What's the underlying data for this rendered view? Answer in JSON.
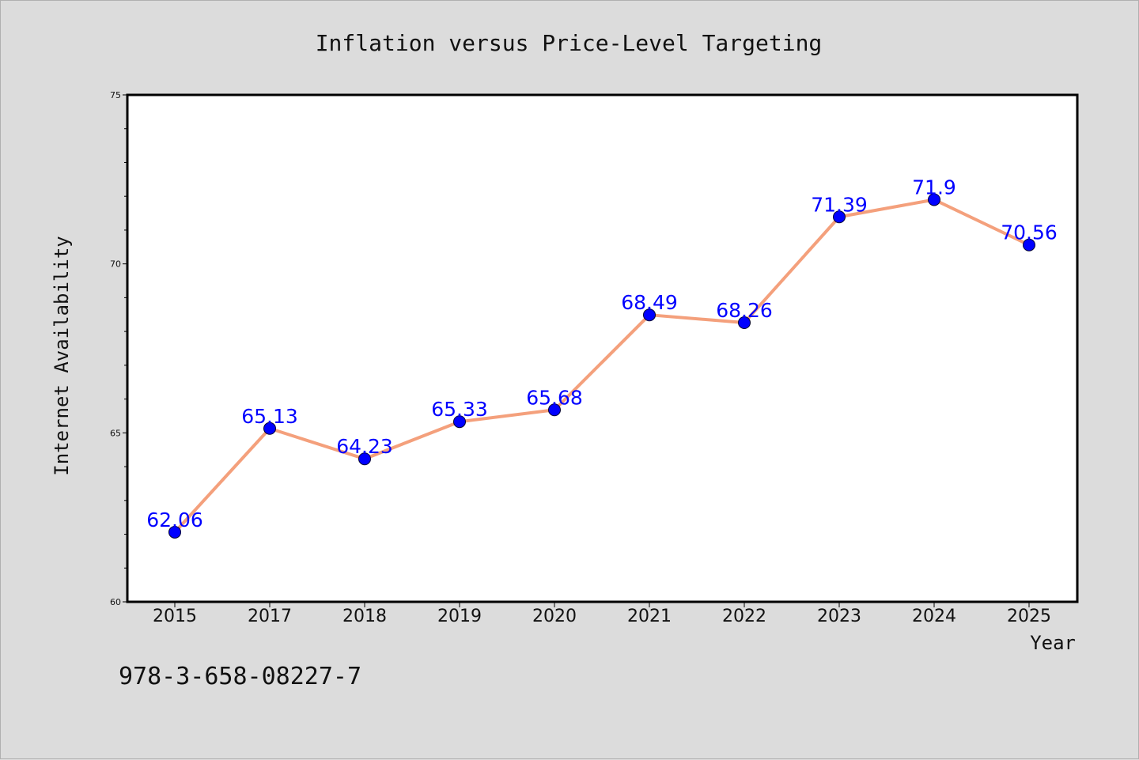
{
  "chart_data": {
    "type": "line",
    "title": "Inflation versus Price-Level Targeting",
    "xlabel": "Year",
    "ylabel": "Internet Availability",
    "categories": [
      "2015",
      "2017",
      "2018",
      "2019",
      "2020",
      "2021",
      "2022",
      "2023",
      "2024",
      "2025"
    ],
    "series": [
      {
        "values": [
          62.06,
          65.13,
          64.23,
          65.33,
          65.68,
          68.49,
          68.26,
          71.39,
          71.9,
          70.56
        ],
        "labels": [
          "62.06",
          "65.13",
          "64.23",
          "65.33",
          "65.68",
          "68.49",
          "68.26",
          "71.39",
          "71.9",
          "70.56"
        ],
        "line_color": "#f4a07c",
        "marker_color": "#0000ff"
      }
    ],
    "ylim": [
      60,
      75
    ],
    "yticks": [
      "60",
      "65",
      "70",
      "75"
    ],
    "grid": false,
    "legend": "none"
  },
  "footer": {
    "isbn": "978-3-658-08227-7"
  }
}
